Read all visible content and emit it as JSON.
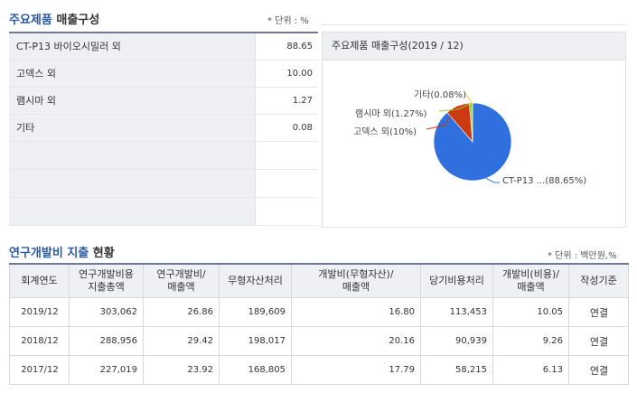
{
  "products": {
    "title_part1": "주요제품",
    "title_part2": "매출구성",
    "unit": "* 단위 : %",
    "rows": [
      {
        "name": "CT-P13 바이오시밀러 외",
        "value": "88.65"
      },
      {
        "name": "고덱스 외",
        "value": "10.00"
      },
      {
        "name": "램시마 외",
        "value": "1.27"
      },
      {
        "name": "기타",
        "value": "0.08"
      }
    ]
  },
  "pie": {
    "header": "주요제품 매출구성(2019 / 12)",
    "labels": {
      "etc": "기타(0.08%)",
      "remsima": "램시마 외(1.27%)",
      "godex": "고덱스 외(10%)",
      "ct": "CT-P13 ...(88.65%)"
    },
    "colors": {
      "ct": "#2f6fde",
      "godex": "#cc3a12",
      "remsima": "#8fd12e",
      "etc": "#f2c84b"
    }
  },
  "chart_data": {
    "type": "pie",
    "labels": [
      "CT-P13 바이오시밀러 외",
      "고덱스 외",
      "램시마 외",
      "기타"
    ],
    "values": [
      88.65,
      10.0,
      1.27,
      0.08
    ]
  },
  "rnd": {
    "title_part1": "연구개발비 지출",
    "title_part2": "현황",
    "unit": "* 단위 : 백만원,%",
    "headers": [
      [
        "회계연도"
      ],
      [
        "연구개발비용",
        "지출총액"
      ],
      [
        "연구개발비/",
        "매출액"
      ],
      [
        "무형자산처리"
      ],
      [
        "개발비(무형자산)/",
        "매출액"
      ],
      [
        "당기비용처리"
      ],
      [
        "개발비(비용)/",
        "매출액"
      ],
      [
        "작성기준"
      ]
    ],
    "rows": [
      [
        "2019/12",
        "303,062",
        "26.86",
        "189,609",
        "16.80",
        "113,453",
        "10.05",
        "연결"
      ],
      [
        "2018/12",
        "288,956",
        "29.42",
        "198,017",
        "20.16",
        "90,939",
        "9.26",
        "연결"
      ],
      [
        "2017/12",
        "227,019",
        "23.92",
        "168,805",
        "17.79",
        "58,215",
        "6.13",
        "연결"
      ]
    ]
  }
}
